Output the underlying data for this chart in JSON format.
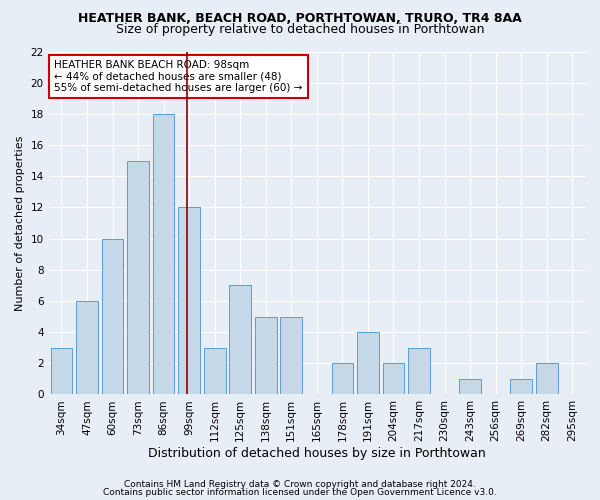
{
  "title1": "HEATHER BANK, BEACH ROAD, PORTHTOWAN, TRURO, TR4 8AA",
  "title2": "Size of property relative to detached houses in Porthtowan",
  "xlabel": "Distribution of detached houses by size in Porthtowan",
  "ylabel": "Number of detached properties",
  "categories": [
    "34sqm",
    "47sqm",
    "60sqm",
    "73sqm",
    "86sqm",
    "99sqm",
    "112sqm",
    "125sqm",
    "138sqm",
    "151sqm",
    "165sqm",
    "178sqm",
    "191sqm",
    "204sqm",
    "217sqm",
    "230sqm",
    "243sqm",
    "256sqm",
    "269sqm",
    "282sqm",
    "295sqm"
  ],
  "values": [
    3,
    6,
    10,
    15,
    18,
    12,
    3,
    7,
    5,
    5,
    0,
    2,
    4,
    2,
    3,
    0,
    1,
    0,
    1,
    2,
    0
  ],
  "bar_color": "#c5d8e8",
  "bar_edge_color": "#5b9bd5",
  "ylim": [
    0,
    22
  ],
  "yticks": [
    0,
    2,
    4,
    6,
    8,
    10,
    12,
    14,
    16,
    18,
    20,
    22
  ],
  "vline_x": 4.92,
  "vline_color": "#8b0000",
  "annotation_text": "HEATHER BANK BEACH ROAD: 98sqm\n← 44% of detached houses are smaller (48)\n55% of semi-detached houses are larger (60) →",
  "annotation_box_color": "#ffffff",
  "annotation_box_edge": "#cc0000",
  "footer1": "Contains HM Land Registry data © Crown copyright and database right 2024.",
  "footer2": "Contains public sector information licensed under the Open Government Licence v3.0.",
  "background_color": "#e8eef5",
  "plot_background": "#e8eef5",
  "title1_fontsize": 9,
  "title2_fontsize": 9,
  "xlabel_fontsize": 9,
  "ylabel_fontsize": 8,
  "tick_fontsize": 7.5,
  "footer_fontsize": 6.5,
  "annotation_fontsize": 7.5
}
